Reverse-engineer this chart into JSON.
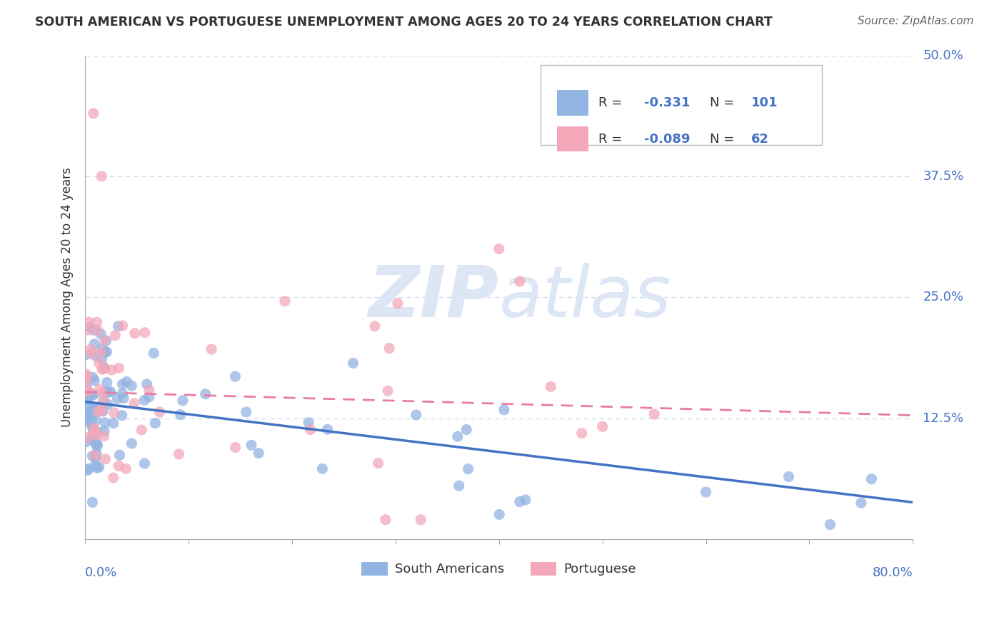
{
  "title": "SOUTH AMERICAN VS PORTUGUESE UNEMPLOYMENT AMONG AGES 20 TO 24 YEARS CORRELATION CHART",
  "source": "Source: ZipAtlas.com",
  "ylabel": "Unemployment Among Ages 20 to 24 years",
  "xlim": [
    0.0,
    0.8
  ],
  "ylim": [
    0.0,
    0.5
  ],
  "xticks": [
    0.0,
    0.1,
    0.2,
    0.3,
    0.4,
    0.5,
    0.6,
    0.7,
    0.8
  ],
  "yticks": [
    0.0,
    0.125,
    0.25,
    0.375,
    0.5
  ],
  "sa_color": "#92b4e3",
  "pt_color": "#f4a7b9",
  "sa_line_color": "#4472c4",
  "pt_line_color": "#e87ca0",
  "sa_R": -0.331,
  "sa_N": 101,
  "pt_R": -0.089,
  "pt_N": 62,
  "legend_label_sa": "South Americans",
  "legend_label_pt": "Portuguese",
  "watermark_zip": "ZIP",
  "watermark_atlas": "atlas",
  "background_color": "#ffffff",
  "sa_trend_y_start": 0.142,
  "sa_trend_y_end": 0.038,
  "pt_trend_y_start": 0.152,
  "pt_trend_y_end": 0.128,
  "title_color": "#333333",
  "axis_label_color": "#333333",
  "tick_color": "#4472c4",
  "grid_color": "#c8d8ec",
  "watermark_color": "#dce6f5",
  "r_value_color": "#4472c4",
  "legend_R_color": "#333333"
}
